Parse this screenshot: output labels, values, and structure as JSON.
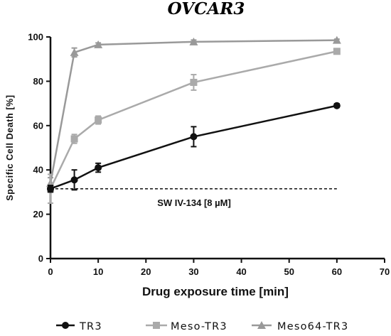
{
  "chart_data": {
    "type": "line",
    "title": "OVCAR3",
    "xlabel": "Drug exposure time [min]",
    "ylabel": "Specific Cell Death [%]",
    "xlim": [
      0,
      70
    ],
    "ylim": [
      0,
      100
    ],
    "x_ticks": [
      "0",
      "10",
      "20",
      "30",
      "40",
      "50",
      "60",
      "70"
    ],
    "y_ticks": [
      "0",
      "20",
      "40",
      "60",
      "80",
      "100"
    ],
    "grid": false,
    "legend_position": "bottom",
    "x": [
      0,
      5,
      10,
      30,
      60
    ],
    "series": [
      {
        "name": "TR3",
        "marker": "circle",
        "color": "#111111",
        "values": [
          31.5,
          35.5,
          41,
          55,
          69
        ],
        "errors": [
          1.5,
          4.5,
          2,
          4.5,
          0.8
        ]
      },
      {
        "name": "Meso-TR3",
        "marker": "square",
        "color": "#aaaaaa",
        "values": [
          31.5,
          54,
          62.5,
          79.5,
          93.5
        ],
        "errors": [
          6.5,
          2,
          1.8,
          3.5,
          1
        ]
      },
      {
        "name": "Meso64-TR3",
        "marker": "triangle",
        "color": "#999999",
        "values": [
          34,
          93,
          96.5,
          97.8,
          98.5
        ],
        "errors": [
          2.5,
          2,
          0.8,
          0.8,
          0.5
        ]
      }
    ],
    "reference_line": {
      "label": "SW IV-134 [8 µM]",
      "y": 31.5,
      "x_range": [
        0,
        60
      ],
      "style": "dashed"
    }
  }
}
